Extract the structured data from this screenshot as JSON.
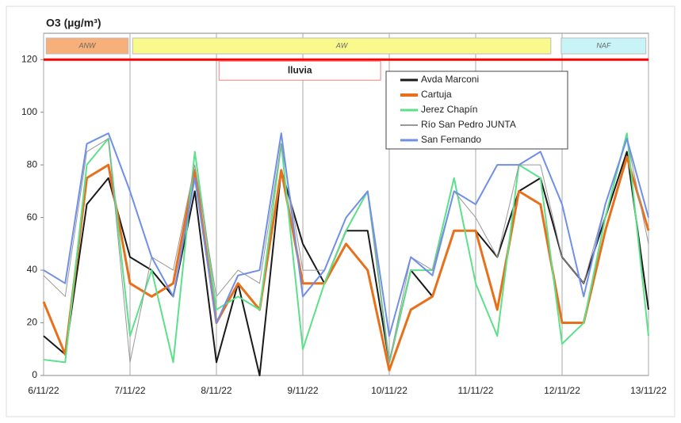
{
  "chart_data": {
    "type": "line",
    "title": "O3 (µg/m³)",
    "x": [
      0,
      0.25,
      0.5,
      0.75,
      1,
      1.25,
      1.5,
      1.75,
      2,
      2.25,
      2.5,
      2.75,
      3,
      3.25,
      3.5,
      3.75,
      4,
      4.25,
      4.5,
      4.75,
      5,
      5.25,
      5.5,
      5.75,
      6,
      6.25,
      6.5,
      6.75,
      7
    ],
    "xlim": [
      0,
      7
    ],
    "xticks": [
      {
        "value": 0,
        "label": "6/11/22"
      },
      {
        "value": 1,
        "label": "7/11/22"
      },
      {
        "value": 2,
        "label": "8/11/22"
      },
      {
        "value": 3,
        "label": "9/11/22"
      },
      {
        "value": 4,
        "label": "10/11/22"
      },
      {
        "value": 5,
        "label": "11/11/22"
      },
      {
        "value": 6,
        "label": "12/11/22"
      },
      {
        "value": 7,
        "label": "13/11/22"
      }
    ],
    "ylim": [
      0,
      130
    ],
    "yticks": [
      0,
      20,
      40,
      60,
      80,
      100,
      120
    ],
    "threshold": {
      "value": 120,
      "color": "#ff0000"
    },
    "periods": [
      {
        "label": "ANW",
        "start": 0.03,
        "end": 0.98,
        "color": "#f7b07a"
      },
      {
        "label": "AW",
        "start": 1.03,
        "end": 5.87,
        "color": "#fafa8c"
      },
      {
        "label": "NAF",
        "start": 5.99,
        "end": 6.97,
        "color": "#c8f4f8"
      }
    ],
    "rain": {
      "label": "lluvia",
      "start": 2.03,
      "end": 3.9
    },
    "series": [
      {
        "name": "Avda Marconi",
        "color": "#1a1a1a",
        "width": 2,
        "values": [
          15,
          8,
          65,
          75,
          45,
          40,
          30,
          70,
          5,
          35,
          0,
          78,
          50,
          35,
          55,
          55,
          5,
          40,
          30,
          55,
          55,
          45,
          70,
          75,
          45,
          35,
          60,
          85,
          25
        ]
      },
      {
        "name": "Cartuja",
        "color": "#e8701a",
        "width": 3,
        "values": [
          28,
          8,
          75,
          80,
          35,
          30,
          35,
          78,
          20,
          35,
          25,
          78,
          35,
          35,
          50,
          40,
          2,
          25,
          30,
          55,
          55,
          25,
          70,
          65,
          20,
          20,
          55,
          83,
          55
        ]
      },
      {
        "name": "Jerez Chapín",
        "color": "#5ce08a",
        "width": 2,
        "values": [
          6,
          5,
          80,
          90,
          15,
          40,
          5,
          85,
          25,
          30,
          25,
          88,
          10,
          35,
          55,
          70,
          5,
          40,
          40,
          75,
          35,
          15,
          80,
          75,
          12,
          20,
          60,
          92,
          15
        ]
      },
      {
        "name": "Río San Pedro JUNTA",
        "color": "#999999",
        "width": 1,
        "values": [
          38,
          30,
          85,
          90,
          5,
          45,
          40,
          80,
          30,
          40,
          35,
          88,
          40,
          40,
          60,
          70,
          5,
          45,
          40,
          70,
          60,
          45,
          80,
          80,
          45,
          35,
          65,
          90,
          50
        ]
      },
      {
        "name": "San Fernando",
        "color": "#6f8fe8",
        "width": 2,
        "values": [
          40,
          35,
          88,
          92,
          70,
          45,
          30,
          75,
          20,
          38,
          40,
          92,
          30,
          40,
          60,
          70,
          15,
          45,
          38,
          70,
          65,
          80,
          80,
          85,
          65,
          30,
          65,
          90,
          60
        ]
      }
    ]
  }
}
